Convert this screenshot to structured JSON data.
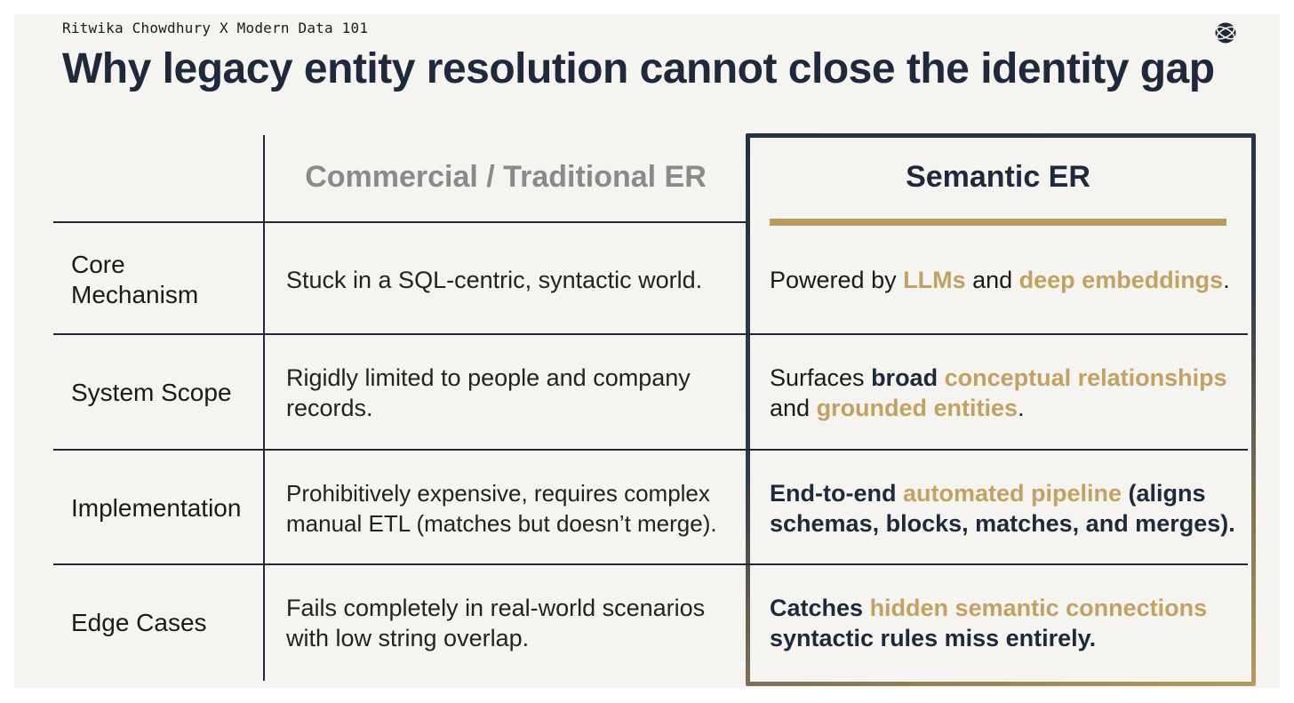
{
  "byline": "Ritwika Chowdhury X Modern Data 101",
  "title": "Why legacy entity resolution cannot close the identity gap",
  "logo_icon": "globe-icon",
  "colors": {
    "navy": "#1e293b",
    "gold": "#c0a264",
    "muted": "#8a8a8a",
    "background": "#f5f4f1"
  },
  "columns": {
    "traditional": "Commercial / Traditional ER",
    "semantic": "Semantic ER"
  },
  "rows": [
    {
      "label": "Core Mechanism",
      "traditional": "Stuck in a SQL-centric, syntactic world.",
      "semantic": [
        "Powered by ",
        "LLMs",
        " and ",
        "deep embeddings",
        "."
      ]
    },
    {
      "label": "System Scope",
      "traditional": "Rigidly limited to people and company records.",
      "semantic": [
        "Surfaces ",
        "broad",
        " ",
        "conceptual relationships",
        " and ",
        "grounded entities",
        "."
      ]
    },
    {
      "label": "Implementation",
      "traditional": "Prohibitively expensive, requires complex manual ETL (matches but doesn’t merge).",
      "semantic": [
        "End-to-end",
        " ",
        "automated pipeline",
        " ",
        "(aligns schemas, blocks, matches, and merges)."
      ]
    },
    {
      "label": "Edge Cases",
      "traditional": "Fails completely in real-world scenarios with low string overlap.",
      "semantic": [
        "Catches",
        " ",
        "hidden semantic connections",
        " ",
        "syntactic rules miss entirely."
      ]
    }
  ]
}
